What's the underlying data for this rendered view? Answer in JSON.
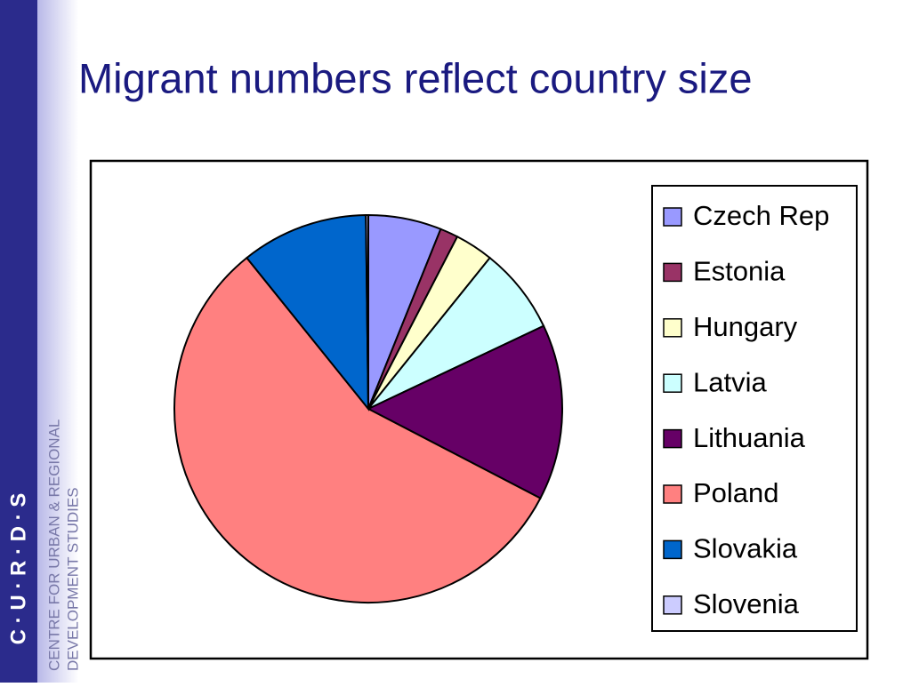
{
  "branding": {
    "logo": "C · U · R · D · S",
    "lines": [
      "CENTRE FOR URBAN & REGIONAL",
      "DEVELOPMENT STUDIES"
    ]
  },
  "chart_data": {
    "type": "pie",
    "title": "Migrant numbers reflect country size",
    "categories": [
      "Czech Rep",
      "Estonia",
      "Hungary",
      "Latvia",
      "Lithuania",
      "Poland",
      "Slovakia",
      "Slovenia"
    ],
    "values": [
      6.1,
      1.5,
      3.2,
      7.2,
      14.7,
      56.7,
      10.6,
      0.2
    ],
    "colors": [
      "#9999ff",
      "#993366",
      "#ffffcc",
      "#ccffff",
      "#660066",
      "#ff8080",
      "#0066cc",
      "#ccccff"
    ],
    "legend": "right"
  }
}
